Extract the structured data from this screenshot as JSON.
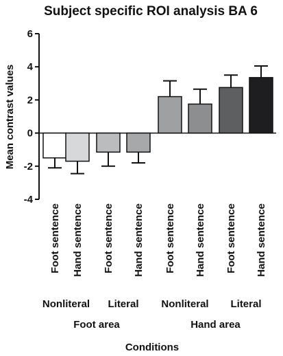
{
  "chart_data": {
    "type": "bar",
    "title": "Subject specific ROI analysis BA 6",
    "xlabel": "Conditions",
    "ylabel": "Mean contrast values",
    "ylim": [
      -4,
      6
    ],
    "yticks": [
      -4,
      -2,
      0,
      2,
      4,
      6
    ],
    "categories": [
      "Foot sentence",
      "Hand sentence",
      "Foot sentence",
      "Hand sentence",
      "Foot sentence",
      "Hand sentence",
      "Foot sentence",
      "Hand sentence"
    ],
    "values": [
      -1.5,
      -1.7,
      -1.15,
      -1.15,
      2.2,
      1.75,
      2.75,
      3.35
    ],
    "errors": [
      0.6,
      0.75,
      0.85,
      0.65,
      0.95,
      0.9,
      0.75,
      0.7
    ],
    "bar_colors": [
      "#ffffff",
      "#d6d8da",
      "#babcbe",
      "#a6a8aa",
      "#9ea0a2",
      "#8c8e90",
      "#5d5f61",
      "#1e1e20"
    ],
    "subgroups": [
      {
        "label": "Nonliteral",
        "span": [
          0,
          1
        ]
      },
      {
        "label": "Literal",
        "span": [
          2,
          3
        ]
      },
      {
        "label": "Nonliteral",
        "span": [
          4,
          5
        ]
      },
      {
        "label": "Literal",
        "span": [
          6,
          7
        ]
      }
    ],
    "groups": [
      {
        "label": "Foot area",
        "span": [
          0,
          3
        ]
      },
      {
        "label": "Hand area",
        "span": [
          4,
          7
        ]
      }
    ],
    "grid": false,
    "legend": "none"
  }
}
